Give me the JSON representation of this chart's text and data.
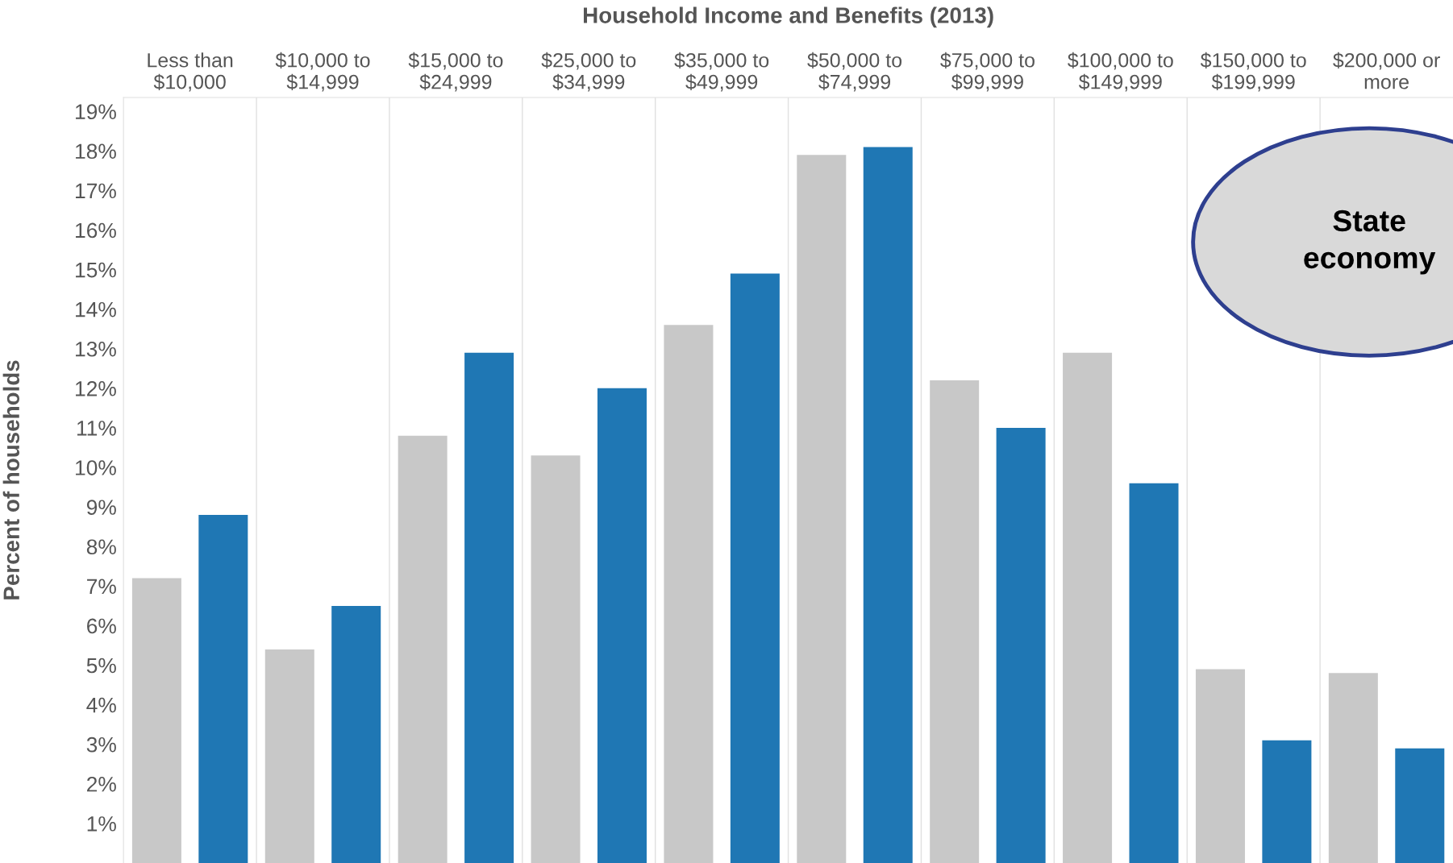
{
  "chart_data": {
    "type": "bar",
    "title": "Household Income and Benefits (2013)",
    "ylabel": "Percent of households",
    "categories": [
      "Less than\n$10,000",
      "$10,000 to\n$14,999",
      "$15,000 to\n$24,999",
      "$25,000 to\n$34,999",
      "$35,000 to\n$49,999",
      "$50,000 to\n$74,999",
      "$75,000 to\n$99,999",
      "$100,000 to\n$149,999",
      "$150,000 to\n$199,999",
      "$200,000 or\nmore"
    ],
    "series": [
      {
        "color": "#c8c8c8",
        "values": [
          7.2,
          5.4,
          10.8,
          10.3,
          13.6,
          17.9,
          12.2,
          12.9,
          4.9,
          4.8
        ]
      },
      {
        "color": "#1f77b4",
        "values": [
          8.8,
          6.5,
          12.9,
          12.0,
          14.9,
          18.1,
          11.0,
          9.6,
          3.1,
          2.9
        ]
      }
    ],
    "ylim": [
      0,
      19.35
    ],
    "yticks": [
      {
        "value": 1,
        "label": "1%"
      },
      {
        "value": 2,
        "label": "2%"
      },
      {
        "value": 3,
        "label": "3%"
      },
      {
        "value": 4,
        "label": "4%"
      },
      {
        "value": 5,
        "label": "5%"
      },
      {
        "value": 6,
        "label": "6%"
      },
      {
        "value": 7,
        "label": "7%"
      },
      {
        "value": 8,
        "label": "8%"
      },
      {
        "value": 9,
        "label": "9%"
      },
      {
        "value": 10,
        "label": "10%"
      },
      {
        "value": 11,
        "label": "11%"
      },
      {
        "value": 12,
        "label": "12%"
      },
      {
        "value": 13,
        "label": "13%"
      },
      {
        "value": 14,
        "label": "14%"
      },
      {
        "value": 15,
        "label": "15%"
      },
      {
        "value": 16,
        "label": "16%"
      },
      {
        "value": 17,
        "label": "17%"
      },
      {
        "value": 18,
        "label": "18%"
      },
      {
        "value": 19,
        "label": "19%"
      }
    ],
    "grid": false,
    "annotations": [
      "State\neconomy"
    ]
  }
}
